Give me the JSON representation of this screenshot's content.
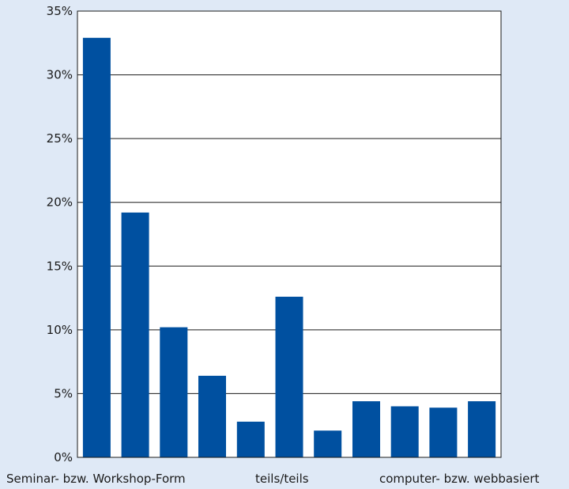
{
  "chart_data": {
    "type": "bar",
    "title": "",
    "xlabel": "",
    "ylabel": "",
    "ylim": [
      0,
      35
    ],
    "yticks": [
      "0%",
      "5%",
      "10%",
      "15%",
      "20%",
      "25%",
      "30%",
      "35%"
    ],
    "grid": true,
    "bar_color": "#0050a0",
    "category_labels": [
      "Seminar- bzw. Workshop-Form",
      "teils/teils",
      "computer- bzw. webbasiert"
    ],
    "values": [
      32.9,
      19.2,
      10.2,
      6.4,
      2.8,
      12.6,
      2.1,
      4.4,
      4.0,
      3.9,
      4.4
    ]
  }
}
